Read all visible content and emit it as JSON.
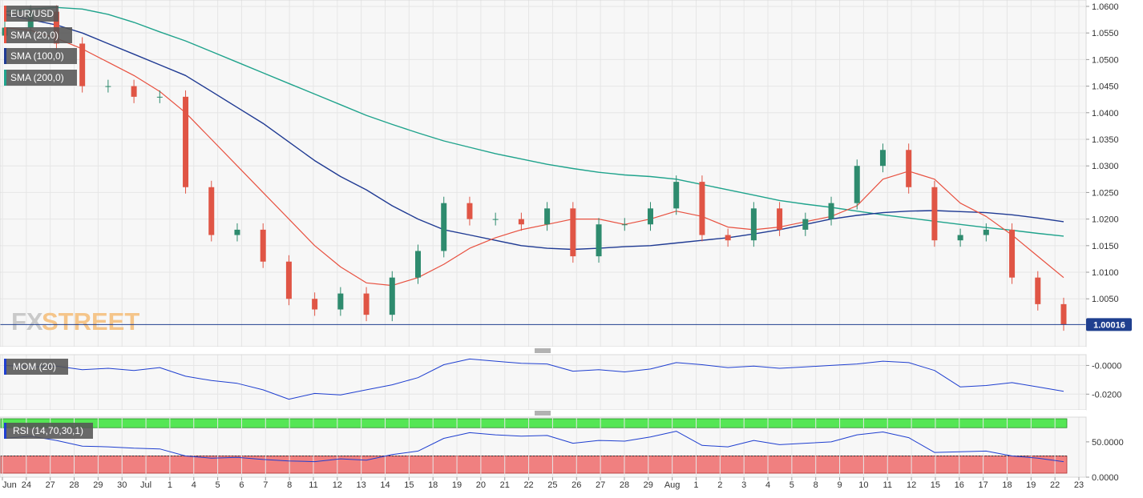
{
  "header": {
    "symbol": "EUR/USD",
    "indicators": [
      {
        "label": "SMA (20,0)",
        "color": "#e8503f"
      },
      {
        "label": "SMA (100,0)",
        "color": "#1f3a93"
      },
      {
        "label": "SMA (200,0)",
        "color": "#1fa38c"
      }
    ]
  },
  "watermark": {
    "part1": "FX",
    "part2": "STREET"
  },
  "price_panel": {
    "ylim": [
      0.996,
      1.0612
    ],
    "y_ticks": [
      "1.0600",
      "1.0550",
      "1.0500",
      "1.0450",
      "1.0400",
      "1.0350",
      "1.0300",
      "1.0250",
      "1.0200",
      "1.0150",
      "1.0100",
      "1.0050"
    ],
    "y_tick_values": [
      1.06,
      1.055,
      1.05,
      1.045,
      1.04,
      1.035,
      1.03,
      1.025,
      1.02,
      1.015,
      1.01,
      1.005
    ],
    "last_price_label": "1.00016",
    "last_price": 1.00016
  },
  "mom_panel": {
    "label": "MOM (20)",
    "color": "#1f3fd0",
    "ylim": [
      -0.031,
      0.0075
    ],
    "y_ticks": [
      "-0.0000",
      "-0.0200"
    ],
    "y_tick_values": [
      0.0,
      -0.02
    ]
  },
  "rsi_panel": {
    "label": "RSI (14,70,30,1)",
    "color": "#1f3fd0",
    "ylim": [
      0,
      85
    ],
    "y_ticks": [
      "50.0000",
      "0.0000"
    ],
    "y_tick_values": [
      50,
      0
    ],
    "overbought": 70,
    "oversold": 30,
    "overbought_color": "#55e655",
    "oversold_color": "#f08080"
  },
  "x_axis": {
    "labels": [
      "Jun",
      "24",
      "27",
      "28",
      "29",
      "30",
      "Jul",
      "1",
      "4",
      "5",
      "6",
      "7",
      "8",
      "11",
      "12",
      "13",
      "14",
      "15",
      "18",
      "19",
      "20",
      "21",
      "22",
      "25",
      "26",
      "27",
      "28",
      "29",
      "Aug",
      "1",
      "2",
      "3",
      "4",
      "5",
      "8",
      "9",
      "10",
      "11",
      "12",
      "15",
      "16",
      "17",
      "18",
      "19",
      "22",
      "23"
    ]
  },
  "chart_data": {
    "type": "line",
    "title": "EUR/USD",
    "x": [
      "Jun 24",
      "Jun 27",
      "Jun 28",
      "Jun 29",
      "Jun 30",
      "Jul 1",
      "Jul 4",
      "Jul 5",
      "Jul 6",
      "Jul 7",
      "Jul 8",
      "Jul 11",
      "Jul 12",
      "Jul 13",
      "Jul 14",
      "Jul 15",
      "Jul 18",
      "Jul 19",
      "Jul 20",
      "Jul 21",
      "Jul 22",
      "Jul 25",
      "Jul 26",
      "Jul 27",
      "Jul 28",
      "Jul 29",
      "Aug 1",
      "Aug 2",
      "Aug 3",
      "Aug 4",
      "Aug 5",
      "Aug 8",
      "Aug 9",
      "Aug 10",
      "Aug 11",
      "Aug 12",
      "Aug 15",
      "Aug 16",
      "Aug 17",
      "Aug 18",
      "Aug 19",
      "Aug 22"
    ],
    "series": [
      {
        "name": "EUR/USD",
        "values": [
          1.056,
          1.059,
          1.053,
          1.045,
          1.045,
          1.043,
          1.043,
          1.026,
          1.017,
          1.018,
          1.012,
          1.005,
          1.003,
          1.006,
          1.002,
          1.009,
          1.014,
          1.023,
          1.02,
          1.02,
          1.019,
          1.022,
          1.013,
          1.019,
          1.019,
          1.022,
          1.027,
          1.017,
          1.016,
          1.022,
          1.018,
          1.02,
          1.023,
          1.03,
          1.033,
          1.026,
          1.016,
          1.017,
          1.018,
          1.009,
          1.004,
          1.0002
        ]
      },
      {
        "name": "SMA (20,0)",
        "values": [
          1.056,
          1.0555,
          1.054,
          1.052,
          1.0495,
          1.047,
          1.044,
          1.04,
          1.035,
          1.03,
          1.025,
          1.02,
          1.015,
          1.011,
          1.008,
          1.0075,
          1.009,
          1.0115,
          1.0145,
          1.0165,
          1.018,
          1.019,
          1.02,
          1.02,
          1.019,
          1.02,
          1.0215,
          1.0205,
          1.0185,
          1.018,
          1.0185,
          1.0195,
          1.0205,
          1.0225,
          1.0275,
          1.029,
          1.0275,
          1.023,
          1.0205,
          1.017,
          1.013,
          1.009
        ]
      },
      {
        "name": "SMA (100,0)",
        "values": [
          1.0585,
          1.0575,
          1.0565,
          1.055,
          1.053,
          1.051,
          1.049,
          1.047,
          1.044,
          1.041,
          1.038,
          1.0345,
          1.031,
          1.028,
          1.0255,
          1.0225,
          1.02,
          1.018,
          1.017,
          1.016,
          1.015,
          1.0145,
          1.0143,
          1.0145,
          1.0148,
          1.015,
          1.0155,
          1.016,
          1.0165,
          1.0172,
          1.018,
          1.019,
          1.02,
          1.0207,
          1.0212,
          1.0215,
          1.0216,
          1.0214,
          1.0212,
          1.0208,
          1.0202,
          1.0195
        ]
      },
      {
        "name": "SMA (200,0)",
        "values": [
          1.059,
          1.0595,
          1.0598,
          1.0595,
          1.0585,
          1.057,
          1.0552,
          1.0535,
          1.0515,
          1.0495,
          1.0475,
          1.0455,
          1.0435,
          1.0415,
          1.0395,
          1.0378,
          1.0362,
          1.0347,
          1.0335,
          1.0323,
          1.0313,
          1.0303,
          1.0295,
          1.0288,
          1.0283,
          1.028,
          1.0275,
          1.0265,
          1.0255,
          1.0245,
          1.0235,
          1.0228,
          1.0222,
          1.0215,
          1.0208,
          1.0202,
          1.0196,
          1.019,
          1.0184,
          1.0179,
          1.0173,
          1.0168
        ]
      },
      {
        "name": "MOM (20)",
        "values": [
          0.0,
          -0.001,
          -0.0005,
          -0.003,
          -0.002,
          -0.0035,
          -0.0015,
          -0.0075,
          -0.0105,
          -0.0125,
          -0.017,
          -0.0235,
          -0.0195,
          -0.0205,
          -0.017,
          -0.0135,
          -0.0085,
          0.0005,
          0.0045,
          0.003,
          0.0015,
          0.001,
          -0.004,
          -0.003,
          -0.0045,
          -0.0025,
          0.002,
          0.0005,
          -0.0015,
          -0.0005,
          -0.002,
          -0.001,
          0.0,
          0.001,
          0.003,
          0.002,
          -0.0035,
          -0.015,
          -0.014,
          -0.012,
          -0.015,
          -0.018
        ]
      },
      {
        "name": "RSI (14,70,30,1)",
        "values": [
          55,
          58,
          52,
          44,
          43,
          41,
          40,
          30,
          27,
          28,
          25,
          23,
          22,
          26,
          24,
          32,
          37,
          55,
          63,
          60,
          58,
          59,
          48,
          52,
          51,
          57,
          65,
          45,
          43,
          52,
          46,
          48,
          50,
          60,
          64,
          56,
          35,
          36,
          37,
          30,
          27,
          22
        ]
      }
    ],
    "xlabel": "",
    "ylabel": "",
    "grid": true
  }
}
